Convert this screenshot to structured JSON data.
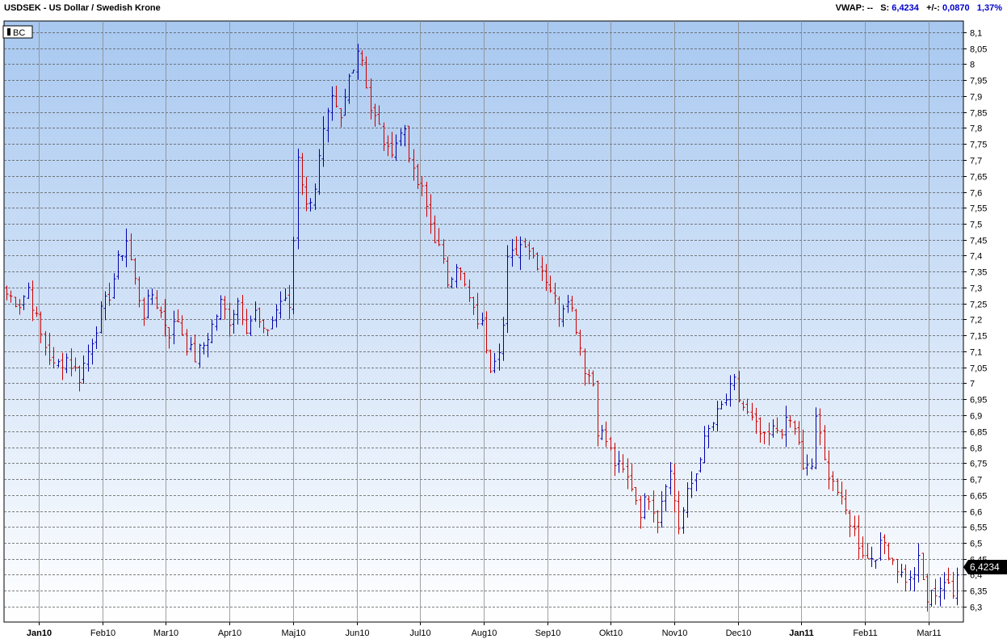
{
  "header": {
    "symbol_title": "USDSEK - US Dollar / Swedish Krone",
    "vwap_label": "VWAP:",
    "vwap_value": "--",
    "s_label": "S:",
    "s_value": "6,4234",
    "change_label": "+/-:",
    "change_value": "0,0870",
    "change_pct": "1,37%"
  },
  "legend": {
    "label": "BC"
  },
  "last_price_tag": "6,4234",
  "colors": {
    "up": "#0000aa",
    "down": "#cc0000",
    "bg_top": "#a8c8f0",
    "bg_bottom": "#ffffff",
    "tag_bg": "#000000"
  },
  "chart_data": {
    "type": "ohlc",
    "title": "USDSEK - US Dollar / Swedish Krone",
    "y_range": [
      6.28,
      8.12
    ],
    "y_ticks": [
      "8,1",
      "8,05",
      "8",
      "7,95",
      "7,9",
      "7,85",
      "7,8",
      "7,75",
      "7,7",
      "7,65",
      "7,6",
      "7,55",
      "7,5",
      "7,45",
      "7,4",
      "7,35",
      "7,3",
      "7,25",
      "7,2",
      "7,15",
      "7,1",
      "7,05",
      "7",
      "6,95",
      "6,9",
      "6,85",
      "6,8",
      "6,75",
      "6,7",
      "6,65",
      "6,6",
      "6,55",
      "6,5",
      "6,45",
      "6,4",
      "6,35",
      "6,3"
    ],
    "x_ticks": [
      {
        "label": "Jan10",
        "bold": true
      },
      {
        "label": "Feb10",
        "bold": false
      },
      {
        "label": "Mar10",
        "bold": false
      },
      {
        "label": "Apr10",
        "bold": false
      },
      {
        "label": "Maj10",
        "bold": false
      },
      {
        "label": "Jun10",
        "bold": false
      },
      {
        "label": "Jul10",
        "bold": false
      },
      {
        "label": "Aug10",
        "bold": false
      },
      {
        "label": "Sep10",
        "bold": false
      },
      {
        "label": "Okt10",
        "bold": false
      },
      {
        "label": "Nov10",
        "bold": false
      },
      {
        "label": "Dec10",
        "bold": false
      },
      {
        "label": "Jan11",
        "bold": true
      },
      {
        "label": "Feb11",
        "bold": false
      },
      {
        "label": "Mar11",
        "bold": false
      }
    ],
    "anchors": [
      [
        0,
        7.28
      ],
      [
        3,
        7.25
      ],
      [
        5,
        7.3
      ],
      [
        8,
        7.15
      ],
      [
        11,
        7.05
      ],
      [
        14,
        7.08
      ],
      [
        17,
        7.02
      ],
      [
        19,
        7.1
      ],
      [
        22,
        7.22
      ],
      [
        24,
        7.28
      ],
      [
        26,
        7.38
      ],
      [
        28,
        7.45
      ],
      [
        30,
        7.32
      ],
      [
        32,
        7.22
      ],
      [
        34,
        7.28
      ],
      [
        36,
        7.22
      ],
      [
        38,
        7.16
      ],
      [
        40,
        7.2
      ],
      [
        42,
        7.12
      ],
      [
        44,
        7.08
      ],
      [
        46,
        7.12
      ],
      [
        48,
        7.18
      ],
      [
        50,
        7.25
      ],
      [
        52,
        7.2
      ],
      [
        54,
        7.26
      ],
      [
        56,
        7.18
      ],
      [
        58,
        7.22
      ],
      [
        60,
        7.15
      ],
      [
        62,
        7.2
      ],
      [
        64,
        7.26
      ],
      [
        66,
        7.24
      ],
      [
        67,
        7.45
      ],
      [
        68,
        7.72
      ],
      [
        70,
        7.55
      ],
      [
        72,
        7.62
      ],
      [
        74,
        7.78
      ],
      [
        76,
        7.88
      ],
      [
        78,
        7.82
      ],
      [
        80,
        7.96
      ],
      [
        82,
        8.05
      ],
      [
        83,
        8.02
      ],
      [
        85,
        7.86
      ],
      [
        87,
        7.8
      ],
      [
        89,
        7.72
      ],
      [
        91,
        7.76
      ],
      [
        93,
        7.8
      ],
      [
        95,
        7.65
      ],
      [
        97,
        7.6
      ],
      [
        99,
        7.5
      ],
      [
        101,
        7.42
      ],
      [
        103,
        7.32
      ],
      [
        105,
        7.38
      ],
      [
        107,
        7.3
      ],
      [
        109,
        7.22
      ],
      [
        111,
        7.18
      ],
      [
        113,
        7.06
      ],
      [
        115,
        7.12
      ],
      [
        116,
        7.18
      ],
      [
        117,
        7.38
      ],
      [
        119,
        7.42
      ],
      [
        121,
        7.45
      ],
      [
        123,
        7.4
      ],
      [
        125,
        7.36
      ],
      [
        127,
        7.3
      ],
      [
        129,
        7.22
      ],
      [
        131,
        7.28
      ],
      [
        133,
        7.18
      ],
      [
        135,
        7.05
      ],
      [
        137,
        7.0
      ],
      [
        138,
        6.86
      ],
      [
        140,
        6.82
      ],
      [
        142,
        6.75
      ],
      [
        144,
        6.72
      ],
      [
        146,
        6.68
      ],
      [
        148,
        6.6
      ],
      [
        150,
        6.65
      ],
      [
        152,
        6.58
      ],
      [
        154,
        6.7
      ],
      [
        155,
        6.72
      ],
      [
        157,
        6.55
      ],
      [
        159,
        6.65
      ],
      [
        161,
        6.72
      ],
      [
        162,
        6.78
      ],
      [
        164,
        6.85
      ],
      [
        166,
        6.9
      ],
      [
        168,
        6.95
      ],
      [
        170,
        7.0
      ],
      [
        171,
        6.95
      ],
      [
        173,
        6.9
      ],
      [
        175,
        6.86
      ],
      [
        177,
        6.82
      ],
      [
        179,
        6.85
      ],
      [
        181,
        6.86
      ],
      [
        183,
        6.88
      ],
      [
        185,
        6.82
      ],
      [
        186,
        6.72
      ],
      [
        188,
        6.74
      ],
      [
        189,
        6.9
      ],
      [
        191,
        6.75
      ],
      [
        193,
        6.7
      ],
      [
        195,
        6.62
      ],
      [
        197,
        6.57
      ],
      [
        199,
        6.5
      ],
      [
        201,
        6.45
      ],
      [
        203,
        6.47
      ],
      [
        205,
        6.5
      ],
      [
        207,
        6.45
      ],
      [
        209,
        6.4
      ],
      [
        211,
        6.38
      ],
      [
        213,
        6.44
      ],
      [
        215,
        6.32
      ],
      [
        217,
        6.35
      ],
      [
        219,
        6.38
      ],
      [
        221,
        6.33
      ],
      [
        222,
        6.42
      ]
    ]
  }
}
